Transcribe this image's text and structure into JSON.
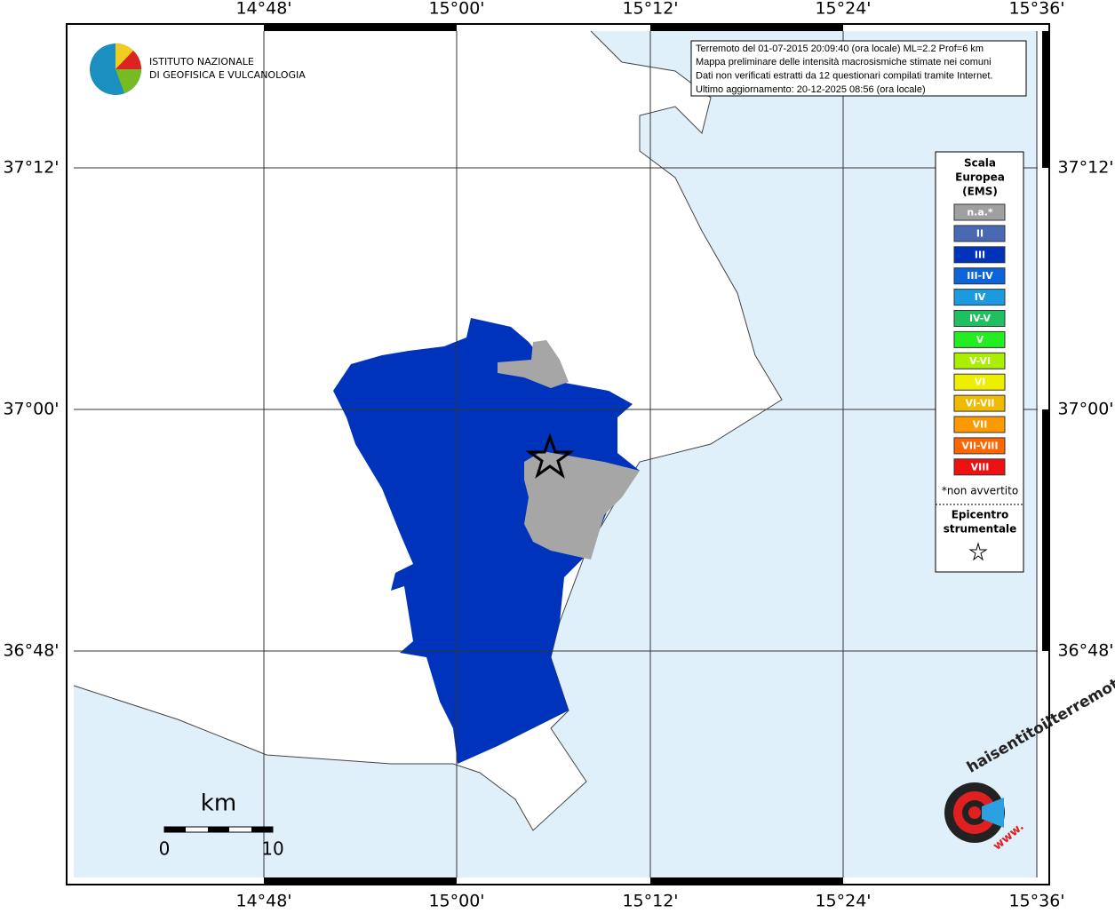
{
  "map": {
    "lon_labels": [
      "14°48'",
      "15°00'",
      "15°12'",
      "15°24'",
      "15°36'"
    ],
    "lat_labels": [
      "37°12'",
      "37°00'",
      "36°48'"
    ],
    "institute": [
      "ISTITUTO NAZIONALE",
      "DI GEOFISICA E VULCANOLOGIA"
    ],
    "info_lines": [
      "Terremoto del 01-07-2015 20:09:40 (ora locale) ML=2.2 Prof=6 km",
      "Mappa preliminare delle intensità macrosismiche stimate nei comuni",
      "Dati non verificati estratti da 12 questionari compilati tramite Internet.",
      "Ultimo aggiornamento: 20-12-2025 08:56 (ora locale)"
    ],
    "legend": {
      "title": [
        "Scala",
        "Europea",
        "(EMS)"
      ],
      "items": [
        {
          "label": "n.a.*",
          "color": "#a0a0a0"
        },
        {
          "label": "II",
          "color": "#4a69b5"
        },
        {
          "label": "III",
          "color": "#0033bb"
        },
        {
          "label": "III-IV",
          "color": "#0b64d8"
        },
        {
          "label": "IV",
          "color": "#1a9be0"
        },
        {
          "label": "IV-V",
          "color": "#1ec060"
        },
        {
          "label": "V",
          "color": "#22ee22"
        },
        {
          "label": "V-VI",
          "color": "#aaee00"
        },
        {
          "label": "VI",
          "color": "#eeee00"
        },
        {
          "label": "VI-VII",
          "color": "#eebb00"
        },
        {
          "label": "VII",
          "color": "#ff9900"
        },
        {
          "label": "VII-VIII",
          "color": "#ff6600"
        },
        {
          "label": "VIII",
          "color": "#ee1111"
        }
      ],
      "note": "*non avvertito",
      "epicenter": [
        "Epicentro",
        "strumentale"
      ]
    },
    "scale": {
      "unit": "km",
      "ticks": [
        "0",
        "10"
      ]
    },
    "site_logo": {
      "text": "haisentitoilterremoto.it",
      "www": "www."
    }
  }
}
